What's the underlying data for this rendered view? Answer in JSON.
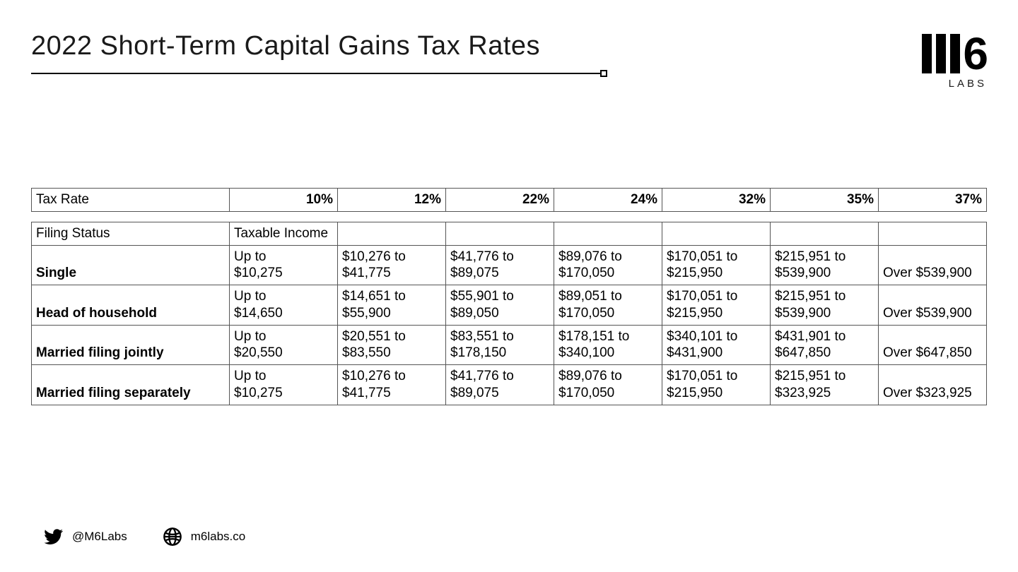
{
  "title": "2022 Short-Term Capital Gains Tax Rates",
  "logo": {
    "text": "6",
    "sub": "LABS"
  },
  "colors": {
    "background": "#ffffff",
    "text": "#000000",
    "border": "#555555"
  },
  "typography": {
    "title_fontsize": 38,
    "cell_fontsize": 19,
    "footer_fontsize": 17,
    "font_family": "Arial Narrow / condensed sans-serif"
  },
  "rate_table": {
    "label": "Tax Rate",
    "rates": [
      "10%",
      "12%",
      "22%",
      "24%",
      "32%",
      "35%",
      "37%"
    ]
  },
  "main_table": {
    "type": "table",
    "header": [
      "Filing Status",
      "Taxable Income",
      "",
      "",
      "",
      "",
      "",
      ""
    ],
    "rows": [
      {
        "status": "Single",
        "cells": [
          "Up to $10,275",
          "$10,276 to $41,775",
          "$41,776 to $89,075",
          "$89,076 to $170,050",
          "$170,051 to $215,950",
          "$215,951 to $539,900",
          "Over $539,900"
        ]
      },
      {
        "status": "Head of household",
        "cells": [
          "Up to $14,650",
          "$14,651 to $55,900",
          "$55,901 to $89,050",
          "$89,051 to $170,050",
          "$170,051 to $215,950",
          "$215,951 to $539,900",
          "Over $539,900"
        ]
      },
      {
        "status": "Married filing jointly",
        "cells": [
          "Up to $20,550",
          "$20,551 to $83,550",
          "$83,551 to $178,150",
          "$178,151 to $340,100",
          "$340,101 to $431,900",
          "$431,901 to $647,850",
          "Over $647,850"
        ]
      },
      {
        "status": "Married filing separately",
        "cells": [
          "Up to $10,275",
          "$10,276 to $41,775",
          "$41,776 to $89,075",
          "$89,076 to $170,050",
          "$170,051 to $215,950",
          "$215,951 to $323,925",
          "Over $323,925"
        ]
      }
    ]
  },
  "footer": {
    "twitter": "@M6Labs",
    "site": "m6labs.co"
  }
}
